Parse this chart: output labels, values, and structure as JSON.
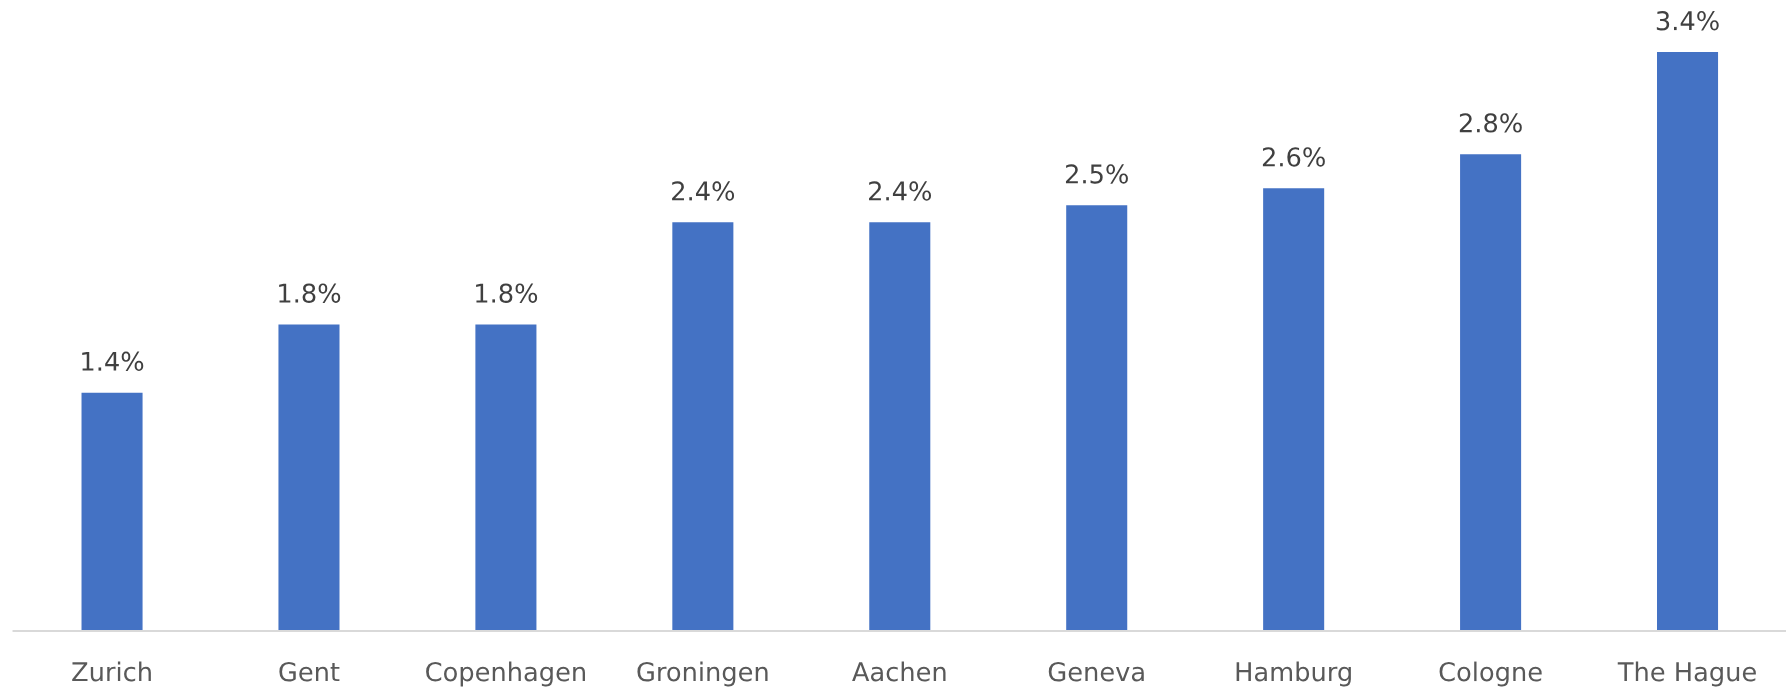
{
  "chart_data": {
    "type": "bar",
    "categories": [
      "Zurich",
      "Gent",
      "Copenhagen",
      "Groningen",
      "Aachen",
      "Geneva",
      "Hamburg",
      "Cologne",
      "The Hague"
    ],
    "values": [
      1.4,
      1.8,
      1.8,
      2.4,
      2.4,
      2.5,
      2.6,
      2.8,
      3.4
    ],
    "value_labels": [
      "1.4%",
      "1.8%",
      "1.8%",
      "2.4%",
      "2.4%",
      "2.5%",
      "2.6%",
      "2.8%",
      "3.4%"
    ],
    "color": "#4472c4",
    "tick_labels": "x"
  }
}
